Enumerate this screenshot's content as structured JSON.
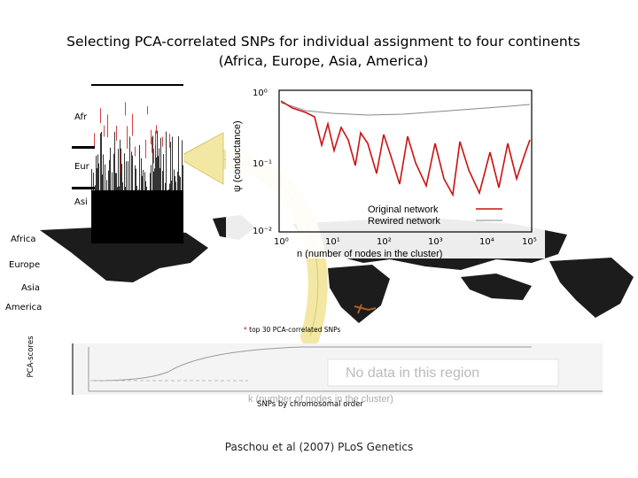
{
  "slide": {
    "title_line1": "Selecting PCA-correlated SNPs for individual assignment to four continents",
    "title_line2": "(Africa, Europe, Asia, America)",
    "citation": "Paschou et al (2007) PLoS Genetics"
  },
  "left_labels": {
    "africa": "Africa",
    "europe": "Europe",
    "asia": "Asia",
    "america": "America"
  },
  "inset_labels": {
    "afr": "Afr",
    "eur": "Eur",
    "asi": "Asi"
  },
  "bottom_plot": {
    "ylabel": "PCA-scores",
    "xlabel": "SNPs by chromosomal order",
    "legend": "top 30 PCA-correlated SNPs",
    "overlay_text": "No data in this region",
    "overlay_xlabel": "k (number of nodes in the cluster)"
  },
  "conductance_plot": {
    "ylabel": "ψ (conductance)",
    "xlabel": "n (number of nodes in the cluster)",
    "y_ticks": [
      "10⁰",
      "10⁻¹",
      "10⁻²"
    ],
    "x_ticks": [
      "10⁰",
      "10¹",
      "10²",
      "10³",
      "10⁴",
      "10⁵"
    ],
    "legend_original": "Original network",
    "legend_rewired": "Rewired network",
    "original_color": "#cc1111",
    "rewired_color": "#888888"
  },
  "colors": {
    "arrow": "#f3e7a4",
    "map": "#1a1a1a",
    "marker": "#cc1111"
  }
}
